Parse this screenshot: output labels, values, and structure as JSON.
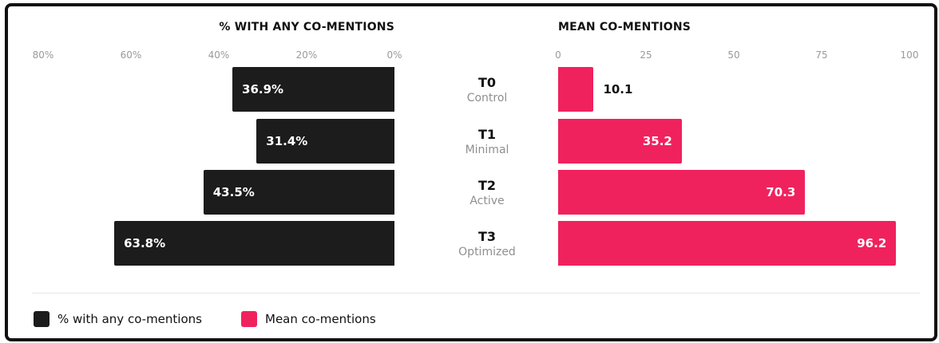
{
  "chart_data": {
    "type": "bar",
    "layout": "diverging horizontal bars (two panels)",
    "categories": [
      {
        "code": "T0",
        "label": "Control"
      },
      {
        "code": "T1",
        "label": "Minimal"
      },
      {
        "code": "T2",
        "label": "Active"
      },
      {
        "code": "T3",
        "label": "Optimized"
      }
    ],
    "left": {
      "title": "% WITH ANY CO-MENTIONS",
      "series_name": "% with any co-mentions",
      "values": [
        36.9,
        31.4,
        43.5,
        63.8
      ],
      "value_labels": [
        "36.9%",
        "31.4%",
        "43.5%",
        "63.8%"
      ],
      "xlim": [
        0,
        80
      ],
      "direction": "reversed (bars extend leftward)",
      "ticks": [
        "80%",
        "60%",
        "40%",
        "20%",
        "0%"
      ],
      "tick_values": [
        80,
        60,
        40,
        20,
        0
      ],
      "color": "#1c1c1c"
    },
    "right": {
      "title": "MEAN CO-MENTIONS",
      "series_name": "Mean co-mentions",
      "values": [
        10.1,
        35.2,
        70.3,
        96.2
      ],
      "value_labels": [
        "10.1",
        "35.2",
        "70.3",
        "96.2"
      ],
      "xlim": [
        0,
        100
      ],
      "ticks": [
        "0",
        "25",
        "50",
        "75",
        "100"
      ],
      "tick_values": [
        0,
        25,
        50,
        75,
        100
      ],
      "color": "#f0225e"
    },
    "grid": false,
    "legend_position": "bottom-left"
  },
  "legend": [
    {
      "label": "% with any co-mentions",
      "color": "#1c1c1c"
    },
    {
      "label": "Mean co-mentions",
      "color": "#f0225e"
    }
  ]
}
